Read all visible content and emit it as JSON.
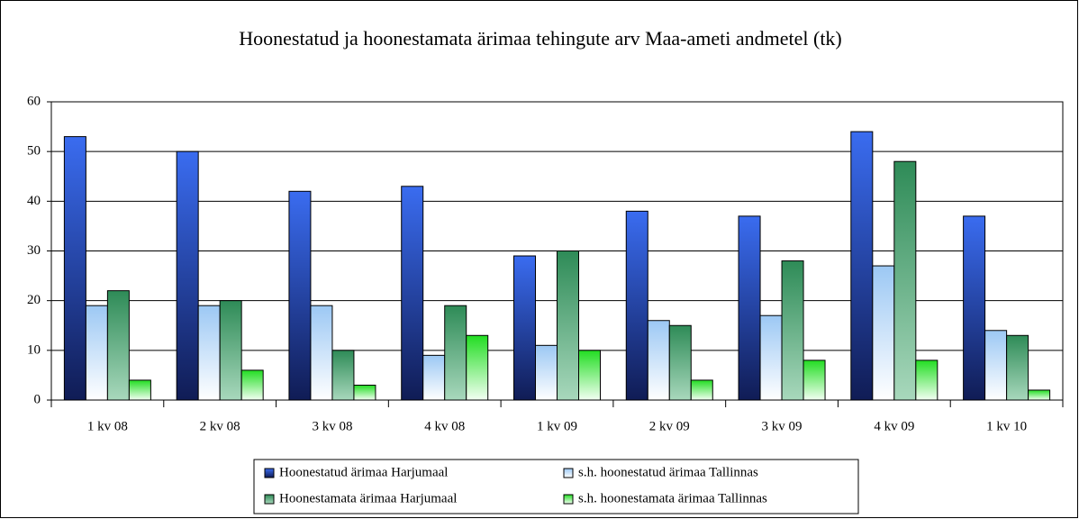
{
  "chart_data": {
    "type": "bar",
    "title": "Hoonestatud ja hoonestamata ärimaa tehingute arv Maa-ameti andmetel (tk)",
    "categories": [
      "1 kv 08",
      "2 kv 08",
      "3 kv 08",
      "4 kv 08",
      "1 kv 09",
      "2 kv 09",
      "3 kv 09",
      "4 kv 09",
      "1 kv 10"
    ],
    "series": [
      {
        "name": "Hoonestatud ärimaa Harjumaal",
        "color": "#3a6cf0",
        "values": [
          53,
          50,
          42,
          43,
          29,
          38,
          37,
          54,
          37
        ]
      },
      {
        "name": "s.h. hoonestatud ärimaa Tallinnas",
        "color": "#9cc8f4",
        "values": [
          19,
          19,
          19,
          9,
          11,
          16,
          17,
          27,
          14
        ]
      },
      {
        "name": "Hoonestamata ärimaa Harjumaal",
        "color": "#2e8b57",
        "values": [
          22,
          20,
          10,
          19,
          30,
          15,
          28,
          48,
          13
        ]
      },
      {
        "name": "s.h. hoonestamata ärimaa Tallinnas",
        "color": "#22dd22",
        "values": [
          4,
          6,
          3,
          13,
          10,
          4,
          8,
          8,
          2
        ]
      }
    ],
    "ylim": [
      0,
      60
    ],
    "yticks": [
      0,
      10,
      20,
      30,
      40,
      50,
      60
    ],
    "grid": true,
    "legend": "bottom"
  }
}
